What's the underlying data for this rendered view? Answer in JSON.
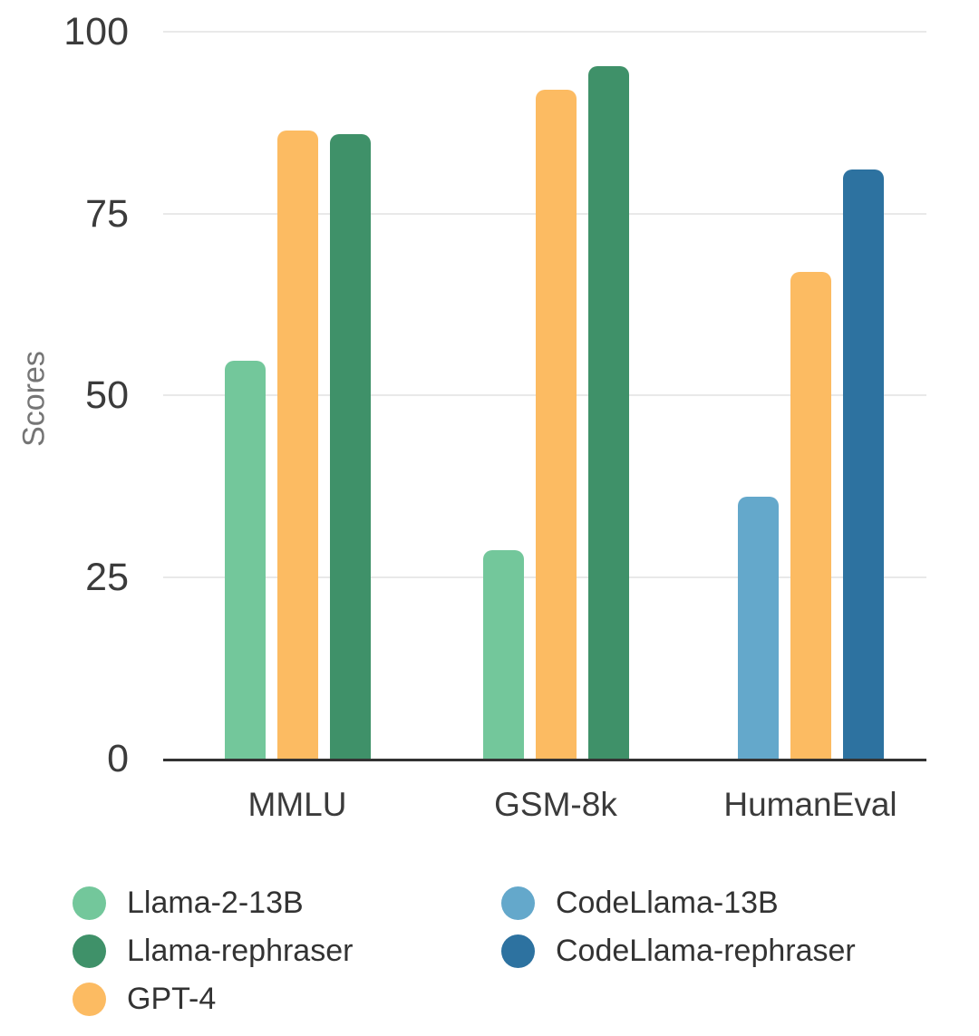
{
  "chart_data": {
    "type": "bar",
    "title": "",
    "xlabel": "",
    "ylabel": "Scores",
    "categories": [
      "MMLU",
      "GSM-8k",
      "HumanEval"
    ],
    "yticks": [
      0,
      25,
      50,
      75,
      100
    ],
    "ylim": [
      0,
      100
    ],
    "grid": true,
    "series": [
      {
        "name": "Llama-2-13B",
        "color": "#73C79B",
        "values": [
          54.8,
          28.7,
          null
        ]
      },
      {
        "name": "Llama-rephraser",
        "color": "#3F9169",
        "values": [
          85.9,
          95.3,
          null
        ]
      },
      {
        "name": "GPT-4",
        "color": "#FCBB62",
        "values": [
          86.4,
          92.0,
          67.0
        ]
      },
      {
        "name": "CodeLlama-13B",
        "color": "#64A8CB",
        "values": [
          null,
          null,
          36.0
        ]
      },
      {
        "name": "CodeLlama-rephraser",
        "color": "#2D72A0",
        "values": [
          null,
          null,
          81.1
        ]
      }
    ],
    "bar_order_per_category": [
      [
        "Llama-2-13B",
        "GPT-4",
        "Llama-rephraser"
      ],
      [
        "Llama-2-13B",
        "GPT-4",
        "Llama-rephraser"
      ],
      [
        "CodeLlama-13B",
        "GPT-4",
        "CodeLlama-rephraser"
      ]
    ],
    "legend": {
      "position": "bottom",
      "columns": [
        [
          "Llama-2-13B",
          "Llama-rephraser",
          "GPT-4"
        ],
        [
          "CodeLlama-13B",
          "CodeLlama-rephraser"
        ]
      ]
    },
    "colors": {
      "background": "#ffffff",
      "axis_line": "#333333",
      "gridline": "#e9e9e9",
      "tick_text": "#3b3b3b",
      "axis_title_text": "#757575",
      "legend_text": "#333333"
    }
  }
}
